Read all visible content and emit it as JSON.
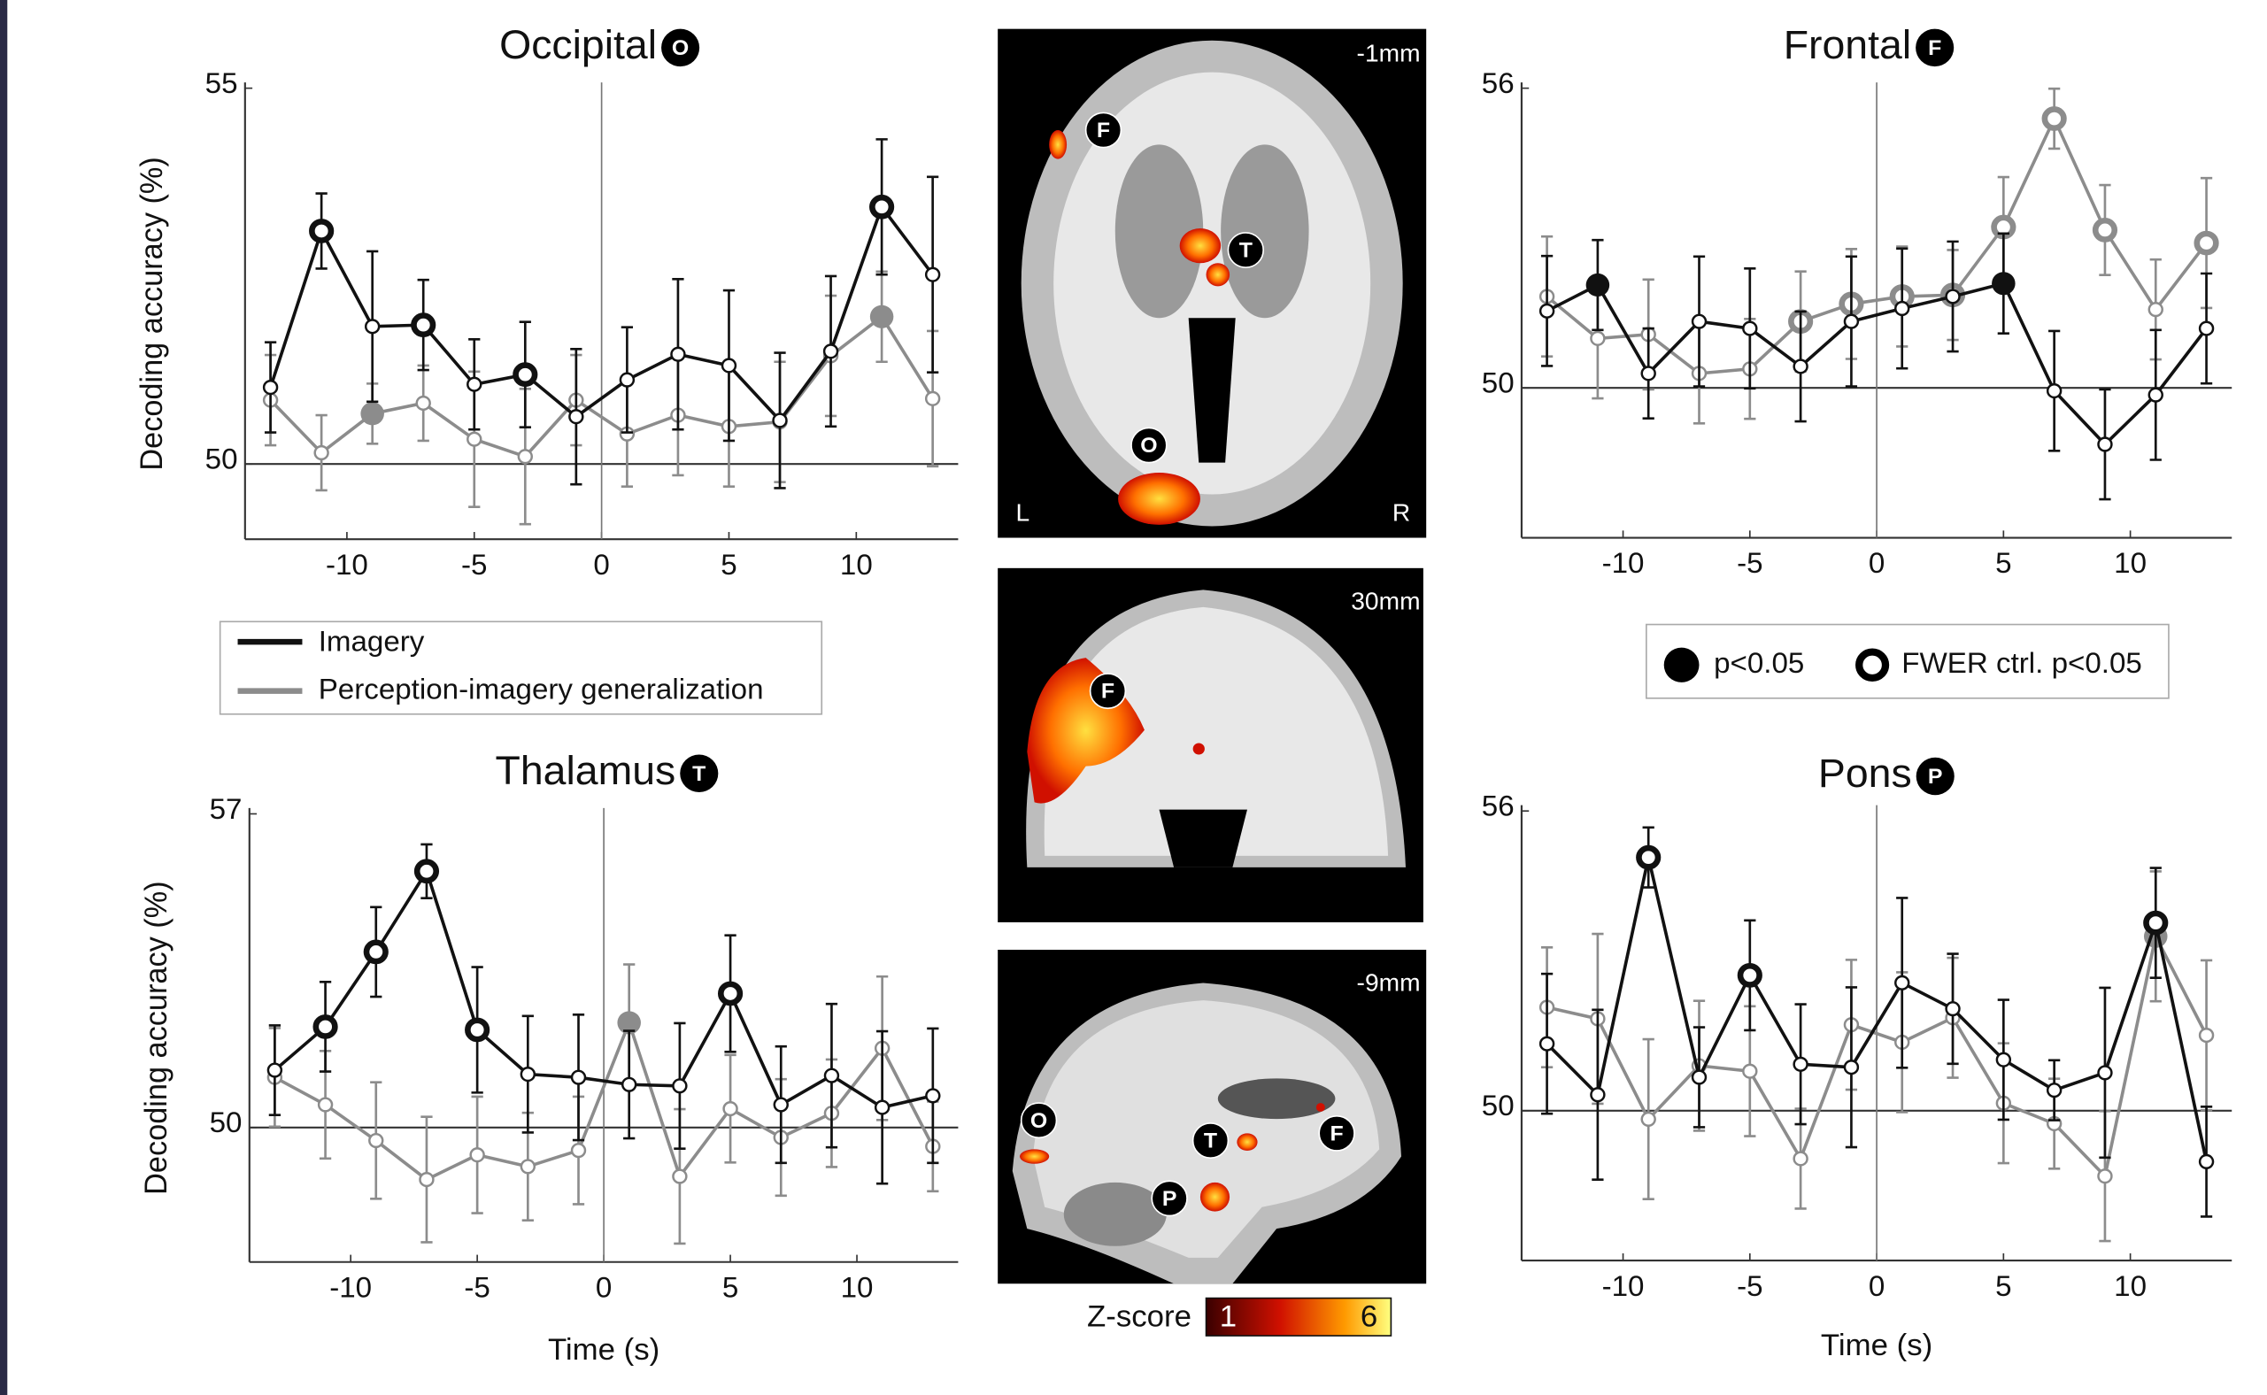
{
  "chart_data": [
    {
      "type": "line",
      "title": "Occipital",
      "badge": "O",
      "y_label": "Decoding accuracy (%)",
      "x": [
        -13,
        -11,
        -9,
        -7,
        -5,
        -3,
        -1,
        1,
        3,
        5,
        7,
        9,
        11,
        13
      ],
      "xlim": [
        -14,
        14
      ],
      "xticks": [
        -10,
        -5,
        0,
        5,
        10
      ],
      "ylim": [
        49,
        55
      ],
      "yticks": [
        50,
        55
      ],
      "hline": 50,
      "vline": 0,
      "series": [
        {
          "name": "Imagery",
          "color": "#111111",
          "values": [
            51.02,
            53.1,
            51.83,
            51.85,
            51.06,
            51.19,
            50.63,
            51.12,
            51.46,
            51.31,
            50.58,
            51.5,
            53.42,
            52.52
          ],
          "errors": [
            0.6,
            0.5,
            1.0,
            0.6,
            0.6,
            0.7,
            0.9,
            0.7,
            1.0,
            1.0,
            0.9,
            1.0,
            0.9,
            1.3
          ],
          "markers": [
            "open",
            "ring",
            "open",
            "ring",
            "open",
            "ring",
            "open",
            "open",
            "open",
            "open",
            "open",
            "open",
            "ring",
            "open"
          ]
        },
        {
          "name": "Perception-imagery generalization",
          "color": "#8c8c8c",
          "values": [
            50.85,
            50.15,
            50.67,
            50.81,
            50.33,
            50.1,
            50.85,
            50.4,
            50.65,
            50.5,
            50.56,
            51.44,
            51.96,
            50.87
          ],
          "errors": [
            0.6,
            0.5,
            0.4,
            0.5,
            0.9,
            0.9,
            0.6,
            0.7,
            0.8,
            0.8,
            0.8,
            0.8,
            0.6,
            0.9
          ],
          "markers": [
            "open",
            "open",
            "filled",
            "open",
            "open",
            "open",
            "open",
            "open",
            "open",
            "open",
            "open",
            "open",
            "filled",
            "open"
          ]
        }
      ]
    },
    {
      "type": "line",
      "title": "Frontal",
      "badge": "F",
      "x": [
        -13,
        -11,
        -9,
        -7,
        -5,
        -3,
        -1,
        1,
        3,
        5,
        7,
        9,
        11,
        13
      ],
      "xlim": [
        -14,
        14
      ],
      "xticks": [
        -10,
        -5,
        0,
        5,
        10
      ],
      "ylim": [
        47,
        56
      ],
      "yticks": [
        50,
        56
      ],
      "hline": 50,
      "vline": 0,
      "series": [
        {
          "color": "#111111",
          "values": [
            51.54,
            52.06,
            50.29,
            51.33,
            51.19,
            50.43,
            51.33,
            51.59,
            51.83,
            52.09,
            49.94,
            48.87,
            49.86,
            51.19
          ],
          "errors": [
            1.1,
            0.9,
            0.9,
            1.3,
            1.2,
            1.1,
            1.3,
            1.2,
            1.1,
            1.0,
            1.2,
            1.1,
            1.3,
            1.1
          ],
          "markers": [
            "open",
            "filled",
            "open",
            "open",
            "open",
            "open",
            "open",
            "open",
            "open",
            "filled",
            "open",
            "open",
            "open",
            "open"
          ]
        },
        {
          "color": "#8c8c8c",
          "values": [
            51.83,
            50.99,
            51.07,
            50.29,
            50.38,
            51.33,
            51.68,
            51.83,
            51.86,
            53.22,
            55.39,
            53.16,
            51.57,
            52.9
          ],
          "errors": [
            1.2,
            1.2,
            1.1,
            1.0,
            1.0,
            1.0,
            1.1,
            1.0,
            0.9,
            1.0,
            0.6,
            0.9,
            1.0,
            1.3
          ],
          "markers": [
            "open",
            "open",
            "open",
            "open",
            "open",
            "ring",
            "ring",
            "ring",
            "ring",
            "ring",
            "ring",
            "ring",
            "open",
            "ring"
          ]
        }
      ]
    },
    {
      "type": "line",
      "title": "Thalamus",
      "badge": "T",
      "y_label": "Decoding accuracy (%)",
      "x_label": "Time (s)",
      "x": [
        -13,
        -11,
        -9,
        -7,
        -5,
        -3,
        -1,
        1,
        3,
        5,
        7,
        9,
        11,
        13
      ],
      "xlim": [
        -14,
        14
      ],
      "xticks": [
        -10,
        -5,
        0,
        5,
        10
      ],
      "ylim": [
        47,
        57
      ],
      "yticks": [
        50,
        57
      ],
      "hline": 50,
      "vline": 0,
      "series": [
        {
          "color": "#111111",
          "values": [
            51.28,
            52.25,
            53.92,
            55.72,
            52.18,
            51.19,
            51.12,
            50.96,
            50.93,
            52.99,
            50.51,
            51.16,
            50.45,
            50.71
          ],
          "errors": [
            1.0,
            1.0,
            1.0,
            0.6,
            1.4,
            1.3,
            1.4,
            1.2,
            1.4,
            1.3,
            1.3,
            1.6,
            1.7,
            1.5
          ],
          "markers": [
            "open",
            "ring",
            "ring",
            "ring",
            "ring",
            "open",
            "open",
            "open",
            "open",
            "ring",
            "open",
            "open",
            "open",
            "open"
          ]
        },
        {
          "color": "#8c8c8c",
          "values": [
            51.12,
            50.51,
            49.71,
            48.84,
            49.39,
            49.13,
            49.49,
            52.34,
            48.91,
            50.42,
            49.78,
            50.32,
            51.77,
            49.58
          ],
          "errors": [
            1.1,
            1.2,
            1.3,
            1.4,
            1.3,
            1.2,
            1.2,
            1.3,
            1.5,
            1.2,
            1.3,
            1.2,
            1.6,
            1.0
          ],
          "markers": [
            "open",
            "open",
            "open",
            "open",
            "open",
            "open",
            "open",
            "filled",
            "open",
            "open",
            "open",
            "open",
            "open",
            "open"
          ]
        }
      ]
    },
    {
      "type": "line",
      "title": "Pons",
      "badge": "P",
      "x_label": "Time (s)",
      "x": [
        -13,
        -11,
        -9,
        -7,
        -5,
        -3,
        -1,
        1,
        3,
        5,
        7,
        9,
        11,
        13
      ],
      "xlim": [
        -14,
        14
      ],
      "xticks": [
        -10,
        -5,
        0,
        5,
        10
      ],
      "ylim": [
        47,
        56
      ],
      "yticks": [
        50,
        56
      ],
      "hline": 50,
      "vline": 0,
      "series": [
        {
          "color": "#111111",
          "values": [
            51.34,
            50.32,
            55.07,
            50.67,
            52.71,
            50.93,
            50.87,
            52.56,
            52.04,
            51.02,
            50.41,
            50.76,
            53.76,
            48.98
          ],
          "errors": [
            1.4,
            1.7,
            0.6,
            1.0,
            1.1,
            1.2,
            1.6,
            1.7,
            1.1,
            1.2,
            0.6,
            1.7,
            1.1,
            1.1
          ],
          "markers": [
            "open",
            "open",
            "ring",
            "open",
            "ring",
            "open",
            "open",
            "open",
            "open",
            "open",
            "open",
            "open",
            "ring",
            "open"
          ]
        },
        {
          "color": "#8c8c8c",
          "values": [
            52.07,
            51.84,
            49.83,
            50.9,
            50.79,
            49.04,
            51.72,
            51.37,
            51.86,
            50.15,
            49.74,
            48.69,
            53.49,
            51.51
          ],
          "errors": [
            1.2,
            1.7,
            1.6,
            1.3,
            1.3,
            1.0,
            1.3,
            1.4,
            1.2,
            1.2,
            0.9,
            1.3,
            1.3,
            1.5
          ],
          "markers": [
            "open",
            "open",
            "open",
            "open",
            "open",
            "open",
            "open",
            "open",
            "open",
            "open",
            "open",
            "open",
            "filled",
            "open"
          ]
        }
      ]
    }
  ],
  "significance_legend": [
    "p<0.05",
    "FWER ctrl. p<0.05"
  ],
  "brain_panels": [
    {
      "slice": "-1mm",
      "left": "L",
      "right": "R",
      "regions": [
        "F",
        "T",
        "O"
      ]
    },
    {
      "slice": "30mm",
      "regions": [
        "F"
      ]
    },
    {
      "slice": "-9mm",
      "regions": [
        "O",
        "T",
        "F",
        "P"
      ]
    }
  ],
  "colorbar": {
    "label": "Z-score",
    "min": "1",
    "max": "6"
  }
}
